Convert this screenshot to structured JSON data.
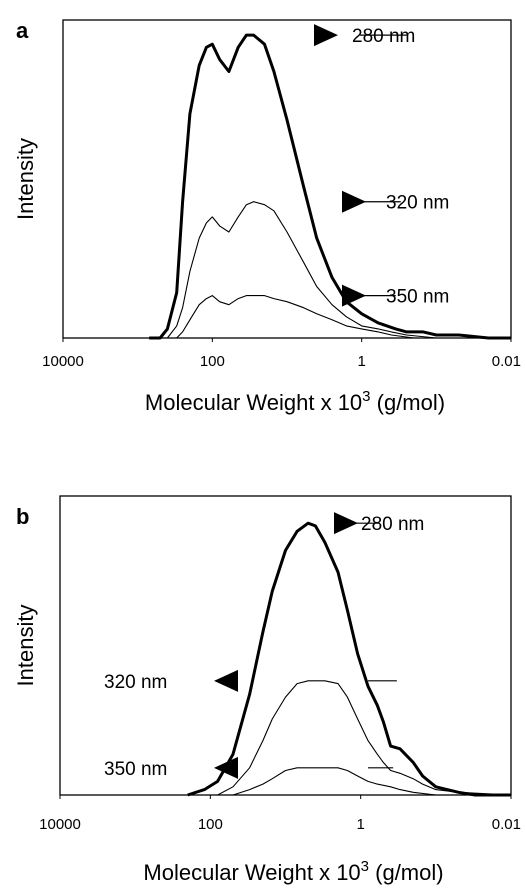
{
  "chart_data": [
    {
      "type": "line",
      "panel_label": "a",
      "ylabel": "Intensity",
      "xlabel": "Molecular Weight x 10",
      "xlabel_sup": "3",
      "xlabel_tail": " (g/mol)",
      "x_scale": "log",
      "x_reversed": true,
      "xlim": [
        10000,
        0.01
      ],
      "xticks": [
        "10000",
        "100",
        "1",
        "0.01"
      ],
      "ylim": [
        0,
        1.05
      ],
      "grid": false,
      "series": [
        {
          "name": "280 nm",
          "weight": "bold",
          "x": [
            700,
            500,
            400,
            300,
            250,
            200,
            150,
            120,
            100,
            80,
            60,
            45,
            35,
            28,
            20,
            15,
            10,
            6,
            4,
            2.5,
            1.6,
            1,
            0.6,
            0.35,
            0.25,
            0.15,
            0.1,
            0.05,
            0.02,
            0.01
          ],
          "values": [
            0,
            0,
            0.03,
            0.15,
            0.45,
            0.74,
            0.9,
            0.96,
            0.97,
            0.92,
            0.88,
            0.96,
            1.0,
            1.0,
            0.97,
            0.88,
            0.72,
            0.5,
            0.33,
            0.2,
            0.12,
            0.08,
            0.05,
            0.03,
            0.02,
            0.02,
            0.01,
            0.01,
            0,
            0
          ]
        },
        {
          "name": "320 nm",
          "weight": "normal",
          "x": [
            700,
            400,
            300,
            250,
            200,
            150,
            120,
            100,
            80,
            60,
            45,
            35,
            28,
            20,
            15,
            10,
            6,
            4,
            2.5,
            1.6,
            1,
            0.6,
            0.4,
            0.25,
            0.1,
            0.01
          ],
          "values": [
            0,
            0,
            0.04,
            0.1,
            0.22,
            0.33,
            0.38,
            0.4,
            0.37,
            0.35,
            0.4,
            0.44,
            0.45,
            0.44,
            0.42,
            0.35,
            0.25,
            0.17,
            0.11,
            0.07,
            0.04,
            0.03,
            0.02,
            0.01,
            0,
            0
          ]
        },
        {
          "name": "350 nm",
          "weight": "normal",
          "x": [
            700,
            300,
            250,
            200,
            150,
            120,
            100,
            80,
            60,
            45,
            35,
            28,
            20,
            15,
            10,
            6,
            4,
            2.5,
            1.6,
            1,
            0.6,
            0.4,
            0.2,
            0.01
          ],
          "values": [
            0,
            0,
            0.02,
            0.06,
            0.11,
            0.13,
            0.14,
            0.12,
            0.11,
            0.13,
            0.14,
            0.14,
            0.14,
            0.13,
            0.12,
            0.1,
            0.08,
            0.06,
            0.04,
            0.03,
            0.02,
            0.01,
            0,
            0
          ]
        }
      ],
      "annotations": [
        {
          "text": "280 nm",
          "arrow_direction": "right",
          "series": "280 nm"
        },
        {
          "text": "320 nm",
          "arrow_direction": "right",
          "series": "320 nm"
        },
        {
          "text": "350 nm",
          "arrow_direction": "right",
          "series": "350 nm"
        }
      ]
    },
    {
      "type": "line",
      "panel_label": "b",
      "ylabel": "Intensity",
      "xlabel": "Molecular Weight x 10",
      "xlabel_sup": "3",
      "xlabel_tail": " (g/mol)",
      "x_scale": "log",
      "x_reversed": true,
      "xlim": [
        10000,
        0.01
      ],
      "xticks": [
        "10000",
        "100",
        "1",
        "0.01"
      ],
      "ylim": [
        0,
        1.1
      ],
      "grid": false,
      "series": [
        {
          "name": "280 nm",
          "weight": "bold",
          "x": [
            200,
            120,
            80,
            50,
            30,
            20,
            15,
            10,
            7,
            5,
            4,
            3,
            2,
            1.5,
            1.1,
            0.8,
            0.6,
            0.5,
            0.4,
            0.3,
            0.2,
            0.15,
            0.1,
            0.05,
            0.03,
            0.01
          ],
          "values": [
            0,
            0.02,
            0.05,
            0.15,
            0.37,
            0.6,
            0.75,
            0.9,
            0.97,
            1.0,
            0.99,
            0.93,
            0.82,
            0.68,
            0.52,
            0.4,
            0.33,
            0.27,
            0.18,
            0.17,
            0.12,
            0.07,
            0.03,
            0.01,
            0,
            0
          ]
        },
        {
          "name": "320 nm",
          "weight": "normal",
          "x": [
            200,
            80,
            50,
            30,
            20,
            15,
            10,
            7,
            5,
            3,
            2,
            1.5,
            1.1,
            0.8,
            0.6,
            0.5,
            0.4,
            0.3,
            0.2,
            0.15,
            0.1,
            0.05,
            0.01
          ],
          "values": [
            0,
            0,
            0.03,
            0.1,
            0.2,
            0.28,
            0.36,
            0.41,
            0.42,
            0.42,
            0.41,
            0.36,
            0.28,
            0.2,
            0.15,
            0.12,
            0.09,
            0.08,
            0.06,
            0.04,
            0.02,
            0.01,
            0
          ]
        },
        {
          "name": "350 nm",
          "weight": "normal",
          "x": [
            200,
            50,
            30,
            20,
            15,
            10,
            7,
            5,
            3,
            2,
            1.5,
            1.1,
            0.8,
            0.6,
            0.4,
            0.3,
            0.2,
            0.1,
            0.01
          ],
          "values": [
            0,
            0,
            0.02,
            0.04,
            0.06,
            0.09,
            0.1,
            0.1,
            0.1,
            0.1,
            0.09,
            0.07,
            0.05,
            0.04,
            0.03,
            0.02,
            0.01,
            0,
            0
          ]
        }
      ],
      "annotations": [
        {
          "text": "280 nm",
          "arrow_direction": "right",
          "series": "280 nm"
        },
        {
          "text": "320 nm",
          "arrow_direction": "left",
          "series": "320 nm"
        },
        {
          "text": "350 nm",
          "arrow_direction": "left",
          "series": "350 nm"
        }
      ]
    }
  ]
}
